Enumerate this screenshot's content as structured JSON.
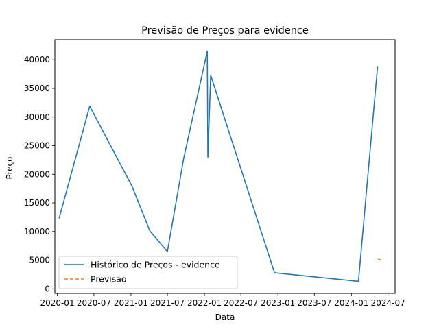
{
  "chart_data": {
    "type": "line",
    "title": "Previsão de Preços para evidence",
    "xlabel": "Data",
    "ylabel": "Preço",
    "x_axis_type": "date",
    "xlim": [
      "2019-12-20",
      "2024-08-05"
    ],
    "ylim": [
      -800,
      43500
    ],
    "x_ticks": [
      {
        "date": "2020-01-01",
        "label": "2020-01"
      },
      {
        "date": "2020-07-01",
        "label": "2020-07"
      },
      {
        "date": "2021-01-01",
        "label": "2021-01"
      },
      {
        "date": "2021-07-01",
        "label": "2021-07"
      },
      {
        "date": "2022-01-01",
        "label": "2022-01"
      },
      {
        "date": "2022-07-01",
        "label": "2022-07"
      },
      {
        "date": "2023-01-01",
        "label": "2023-01"
      },
      {
        "date": "2023-07-01",
        "label": "2023-07"
      },
      {
        "date": "2024-01-01",
        "label": "2024-01"
      },
      {
        "date": "2024-07-01",
        "label": "2024-07"
      }
    ],
    "y_ticks": [
      {
        "value": 0,
        "label": "0"
      },
      {
        "value": 5000,
        "label": "5000"
      },
      {
        "value": 10000,
        "label": "10000"
      },
      {
        "value": 15000,
        "label": "15000"
      },
      {
        "value": 20000,
        "label": "20000"
      },
      {
        "value": 25000,
        "label": "25000"
      },
      {
        "value": 30000,
        "label": "30000"
      },
      {
        "value": 35000,
        "label": "35000"
      },
      {
        "value": 40000,
        "label": "40000"
      }
    ],
    "grid": false,
    "legend_position": "lower-left",
    "series": [
      {
        "name": "Histórico de Preços - evidence",
        "color": "#1f77b4",
        "style": "solid",
        "points": [
          {
            "x": "2020-01-10",
            "y": 12300
          },
          {
            "x": "2020-06-10",
            "y": 31900
          },
          {
            "x": "2021-01-05",
            "y": 18000
          },
          {
            "x": "2021-04-05",
            "y": 10100
          },
          {
            "x": "2021-07-01",
            "y": 6500
          },
          {
            "x": "2021-09-20",
            "y": 22800
          },
          {
            "x": "2022-01-15",
            "y": 41500
          },
          {
            "x": "2022-01-18",
            "y": 23000
          },
          {
            "x": "2022-02-01",
            "y": 37300
          },
          {
            "x": "2022-12-15",
            "y": 2800
          },
          {
            "x": "2024-02-05",
            "y": 1300
          },
          {
            "x": "2024-05-10",
            "y": 38800
          }
        ]
      },
      {
        "name": "Previsão",
        "color": "#ff7f0e",
        "style": "dashed",
        "points": [
          {
            "x": "2024-05-12",
            "y": 5200
          },
          {
            "x": "2024-06-05",
            "y": 4900
          }
        ]
      }
    ]
  }
}
